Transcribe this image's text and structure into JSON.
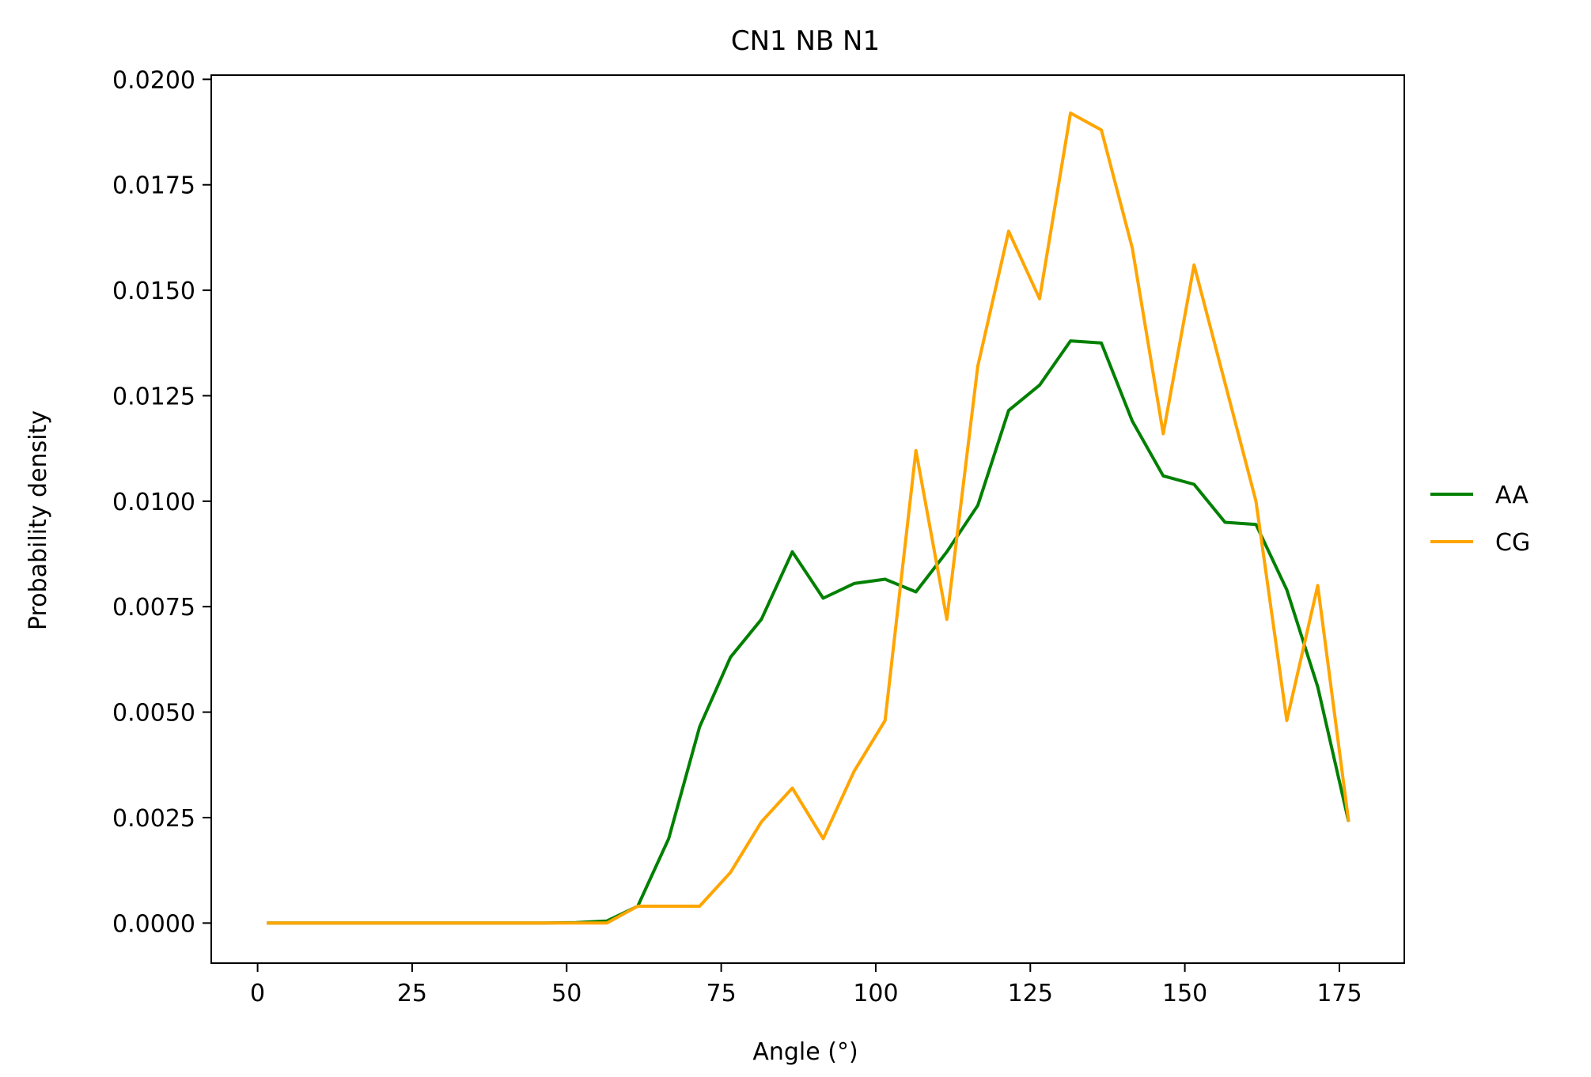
{
  "chart_data": {
    "type": "line",
    "title": "CN1 NB N1",
    "xlabel": "Angle (°)",
    "ylabel": "Probability density",
    "xlim": [
      -7.5,
      185.5
    ],
    "ylim": [
      -0.00095,
      0.0201
    ],
    "xticks": [
      0,
      25,
      50,
      75,
      100,
      125,
      150,
      175
    ],
    "yticks": [
      0.0,
      0.0025,
      0.005,
      0.0075,
      0.01,
      0.0125,
      0.015,
      0.0175,
      0.02
    ],
    "xtick_labels": [
      "0",
      "25",
      "50",
      "75",
      "100",
      "125",
      "150",
      "175"
    ],
    "ytick_labels": [
      "0.0000",
      "0.0025",
      "0.0050",
      "0.0075",
      "0.0100",
      "0.0125",
      "0.0150",
      "0.0175",
      "0.0200"
    ],
    "grid": false,
    "legend_position": "outside-right",
    "x": [
      1.5,
      6.5,
      11.5,
      16.5,
      21.5,
      26.5,
      31.5,
      36.5,
      41.5,
      46.5,
      51.5,
      56.5,
      61.5,
      66.5,
      71.5,
      76.5,
      81.5,
      86.5,
      91.5,
      96.5,
      101.5,
      106.5,
      111.5,
      116.5,
      121.5,
      126.5,
      131.5,
      136.5,
      141.5,
      146.5,
      151.5,
      156.5,
      161.5,
      166.5,
      171.5,
      176.5
    ],
    "series": [
      {
        "name": "AA",
        "color": "#008000",
        "values": [
          0,
          0,
          0,
          0,
          0,
          0,
          0,
          0,
          0,
          0,
          1e-05,
          5e-05,
          0.0004,
          0.002,
          0.00465,
          0.0063,
          0.0072,
          0.0088,
          0.0077,
          0.00805,
          0.00815,
          0.00785,
          0.0088,
          0.0099,
          0.01215,
          0.01275,
          0.0138,
          0.01375,
          0.0119,
          0.0106,
          0.0104,
          0.0095,
          0.00945,
          0.0079,
          0.0056,
          0.0024
        ]
      },
      {
        "name": "CG",
        "color": "#FFA500",
        "values": [
          0,
          0,
          0,
          0,
          0,
          0,
          0,
          0,
          0,
          0,
          0,
          0,
          0.0004,
          0.0004,
          0.0004,
          0.0012,
          0.0024,
          0.0032,
          0.002,
          0.0036,
          0.0048,
          0.0112,
          0.0072,
          0.0132,
          0.0164,
          0.0148,
          0.0192,
          0.0188,
          0.016,
          0.0116,
          0.0156,
          0.0128,
          0.01,
          0.0048,
          0.008,
          0.0024
        ]
      }
    ]
  }
}
